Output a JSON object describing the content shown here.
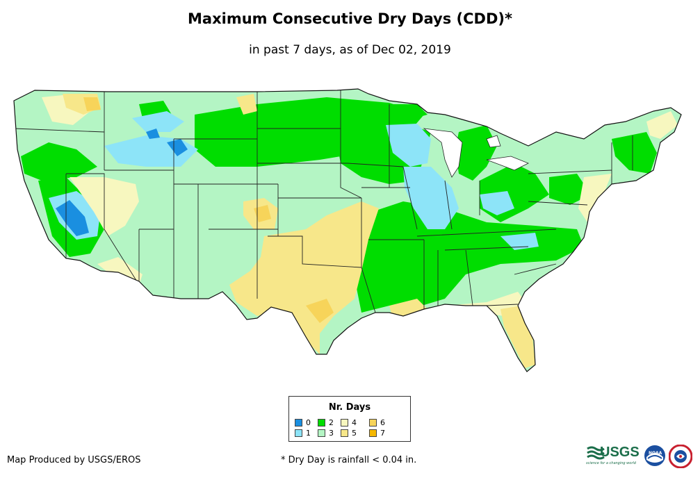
{
  "title": "Maximum Consecutive Dry Days (CDD)*",
  "subtitle": "in past 7 days, as of Dec 02, 2019",
  "legend": {
    "title": "Nr. Days",
    "items": [
      {
        "label": "0",
        "color": "#1a8fe0"
      },
      {
        "label": "1",
        "color": "#8de4f8"
      },
      {
        "label": "2",
        "color": "#00dd00"
      },
      {
        "label": "3",
        "color": "#b4f5c4"
      },
      {
        "label": "4",
        "color": "#f7f7bf"
      },
      {
        "label": "5",
        "color": "#f7e78a"
      },
      {
        "label": "6",
        "color": "#f7d45a"
      },
      {
        "label": "7",
        "color": "#f5b800"
      }
    ]
  },
  "credit": "Map Produced by USGS/EROS",
  "footnote": "* Dry Day is rainfall < 0.04 in.",
  "logos": {
    "usgs": "USGS",
    "usgs_tagline": "science for a changing world",
    "noaa": "NOAA"
  }
}
